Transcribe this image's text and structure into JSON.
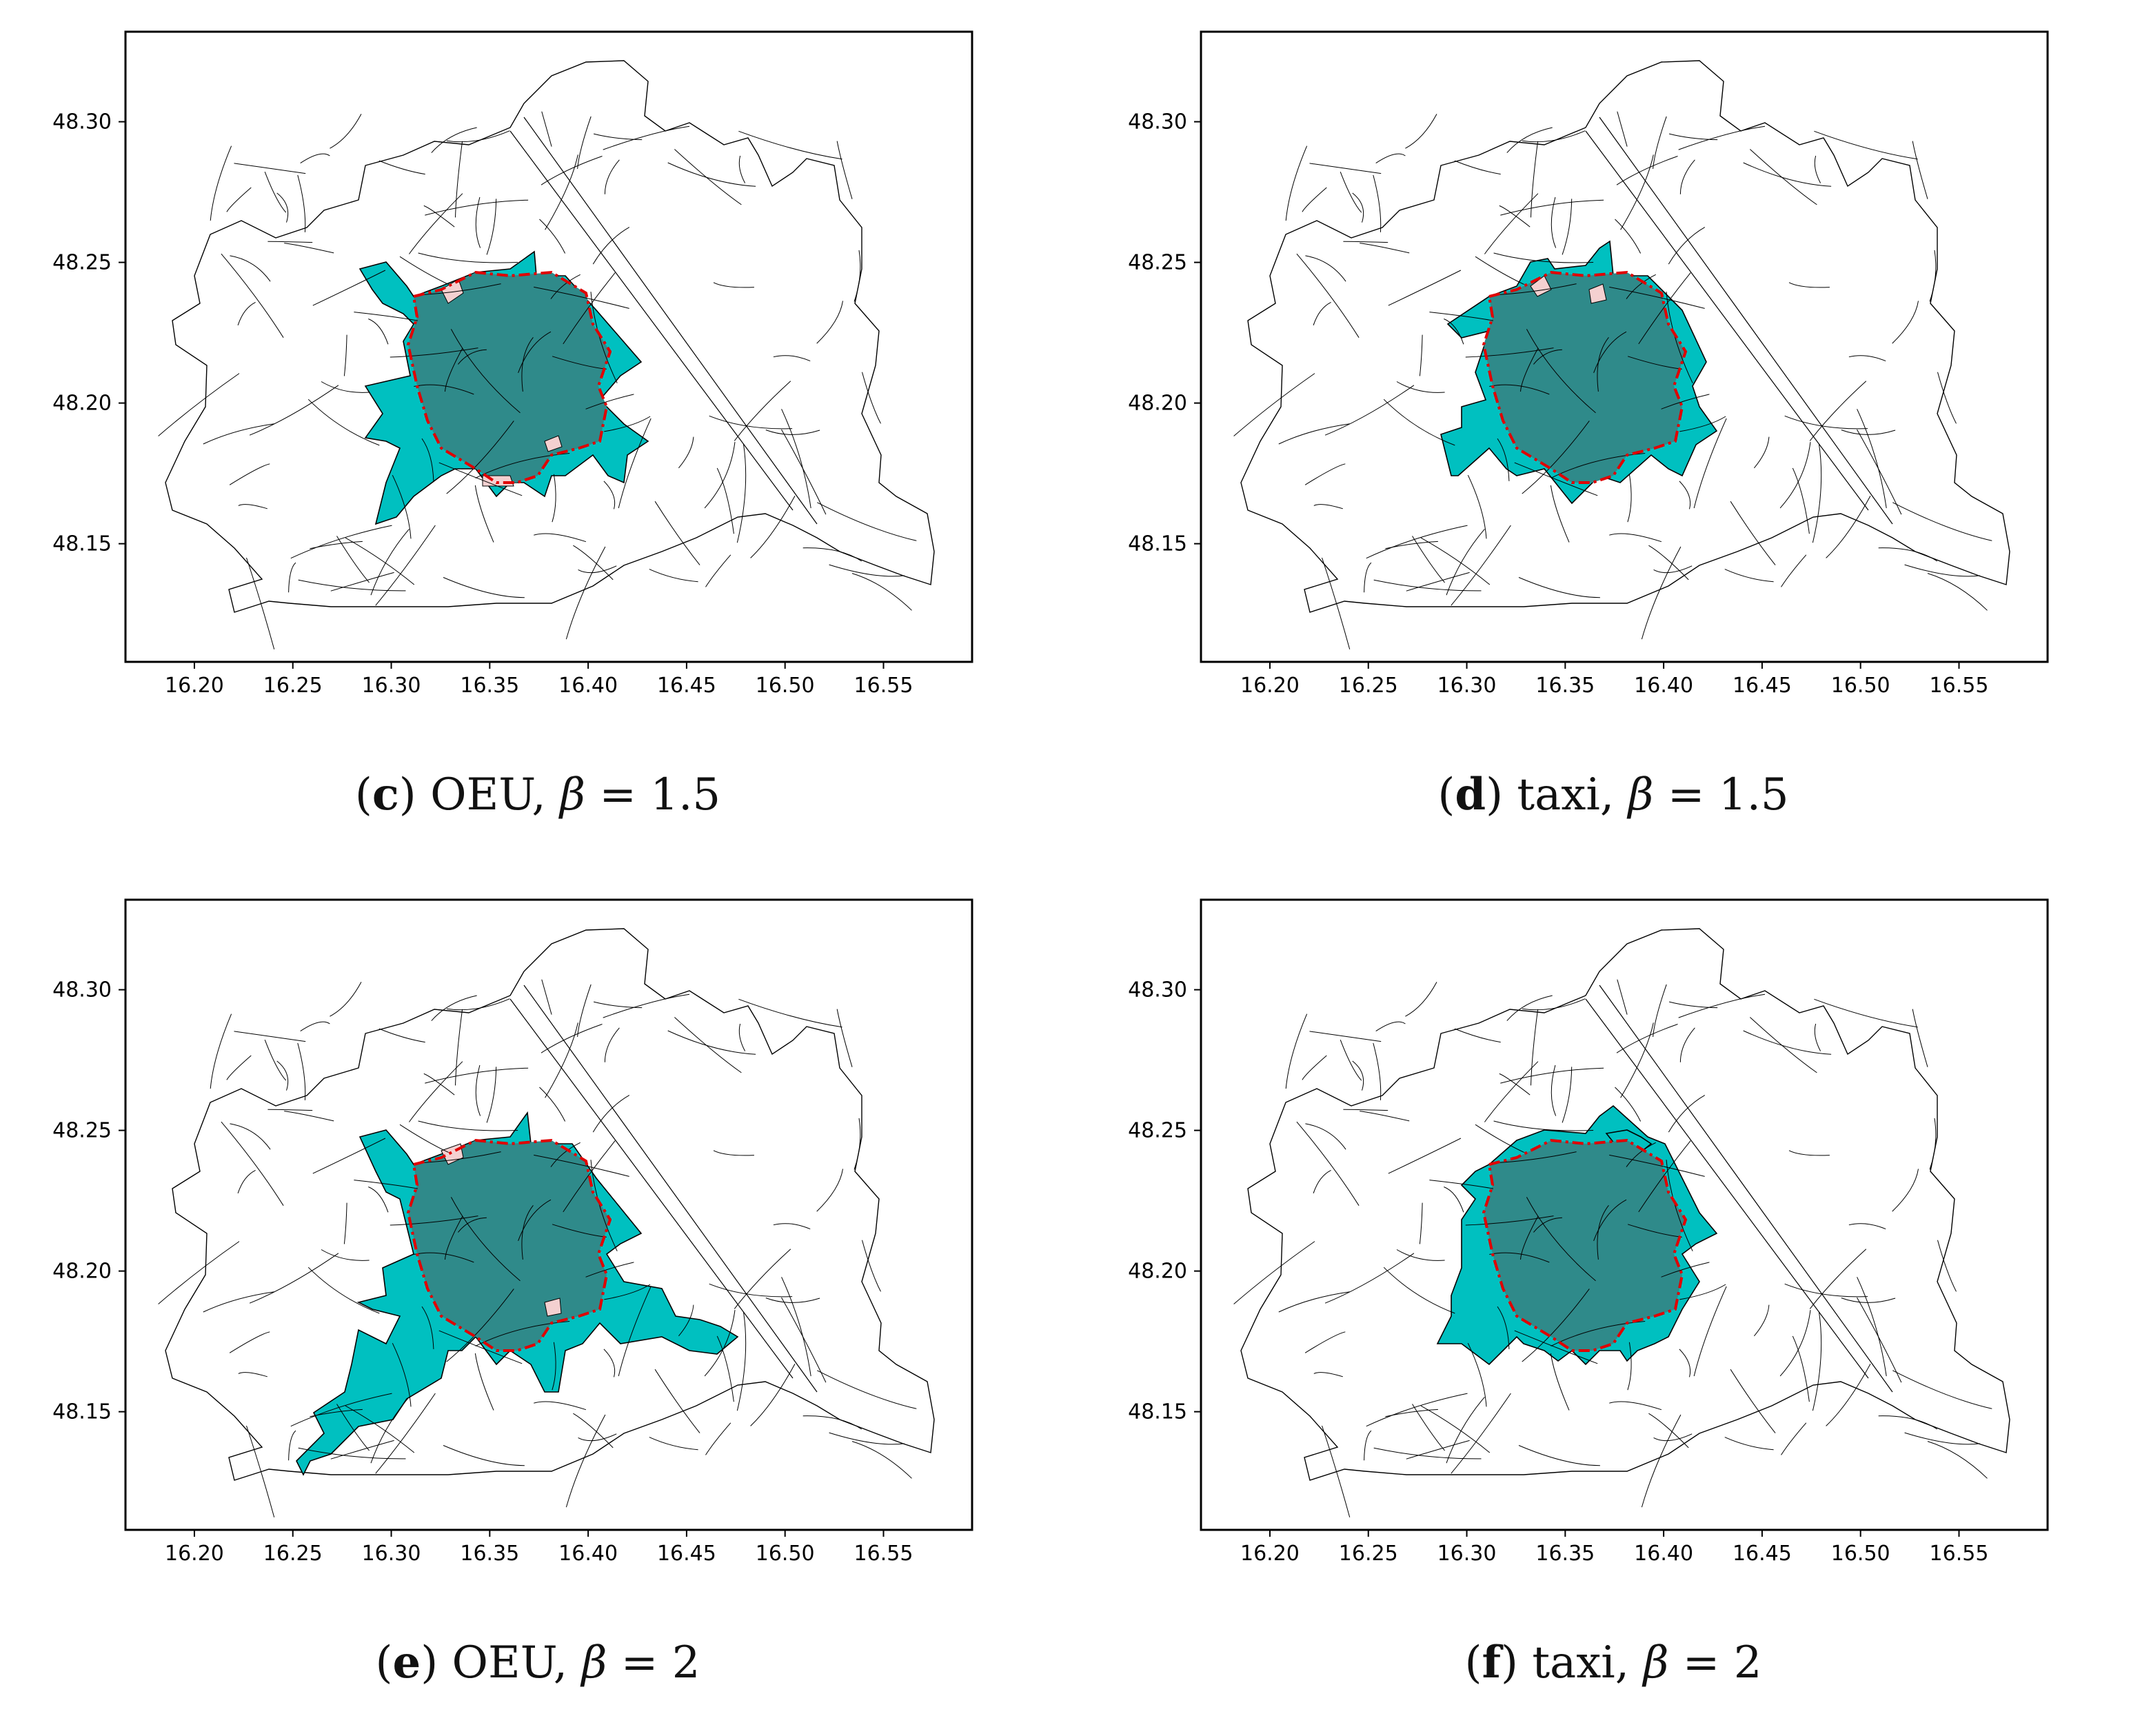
{
  "panels": [
    {
      "id": "c",
      "letter": "c",
      "mode": "OEU",
      "beta_symbol": "β",
      "beta_eq": " = 1.5",
      "shape": "oeu15"
    },
    {
      "id": "d",
      "letter": "d",
      "mode": "taxi",
      "beta_symbol": "β",
      "beta_eq": " = 1.5",
      "shape": "taxi15"
    },
    {
      "id": "e",
      "letter": "e",
      "mode": "OEU",
      "beta_symbol": "β",
      "beta_eq": " = 2",
      "shape": "oeu2"
    },
    {
      "id": "f",
      "letter": "f",
      "mode": "taxi",
      "beta_symbol": "β",
      "beta_eq": " = 2",
      "shape": "taxi2"
    }
  ],
  "axes": {
    "x_ticks": [
      "16.20",
      "16.25",
      "16.30",
      "16.35",
      "16.40",
      "16.45",
      "16.50",
      "16.55"
    ],
    "x_values": [
      16.2,
      16.25,
      16.3,
      16.35,
      16.4,
      16.45,
      16.5,
      16.55
    ],
    "y_ticks": [
      "48.30",
      "48.25",
      "48.20",
      "48.15"
    ],
    "y_values": [
      48.3,
      48.25,
      48.2,
      48.15
    ],
    "xlim": [
      16.165,
      16.595
    ],
    "ylim": [
      48.108,
      48.332
    ]
  },
  "colors": {
    "region_fill": "#00c0c0",
    "core_fill": "#2f8a8a",
    "boundary": "#e00000",
    "mismatch_fill": "#f4d0d0",
    "edge": "#000000"
  }
}
